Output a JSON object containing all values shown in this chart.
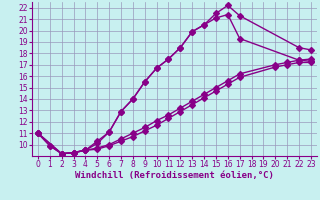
{
  "xlabel": "Windchill (Refroidissement éolien,°C)",
  "bg_color": "#c8f0f0",
  "grid_color": "#9999bb",
  "line_color": "#880088",
  "xlim": [
    -0.5,
    23.5
  ],
  "ylim": [
    9.0,
    22.5
  ],
  "xticks": [
    0,
    1,
    2,
    3,
    4,
    5,
    6,
    7,
    8,
    9,
    10,
    11,
    12,
    13,
    14,
    15,
    16,
    17,
    18,
    19,
    20,
    21,
    22,
    23
  ],
  "yticks": [
    10,
    11,
    12,
    13,
    14,
    15,
    16,
    17,
    18,
    19,
    20,
    21,
    22
  ],
  "line_peak_x": [
    0,
    1,
    2,
    3,
    4,
    5,
    6,
    7,
    8,
    9,
    10,
    11,
    12,
    13,
    14,
    15,
    16,
    17,
    22,
    23
  ],
  "line_peak_y": [
    11.0,
    9.9,
    9.2,
    9.3,
    9.5,
    10.3,
    11.1,
    12.9,
    14.0,
    15.5,
    16.7,
    17.5,
    18.5,
    19.9,
    20.5,
    21.5,
    22.2,
    21.3,
    18.5,
    18.3
  ],
  "line_mid_x": [
    0,
    1,
    2,
    3,
    4,
    5,
    6,
    7,
    8,
    9,
    10,
    11,
    12,
    13,
    14,
    15,
    16,
    17,
    22,
    23
  ],
  "line_mid_y": [
    11.0,
    9.9,
    9.2,
    9.3,
    9.5,
    10.1,
    11.1,
    12.9,
    14.0,
    15.5,
    16.7,
    17.5,
    18.5,
    19.9,
    20.5,
    21.1,
    21.4,
    19.3,
    17.4,
    17.3
  ],
  "line_low1_x": [
    0,
    2,
    3,
    4,
    5,
    6,
    7,
    8,
    9,
    10,
    11,
    12,
    13,
    14,
    15,
    16,
    17,
    20,
    21,
    22,
    23
  ],
  "line_low1_y": [
    11.0,
    9.2,
    9.3,
    9.5,
    9.7,
    10.0,
    10.5,
    11.0,
    11.5,
    12.1,
    12.6,
    13.2,
    13.8,
    14.4,
    15.0,
    15.6,
    16.2,
    17.0,
    17.2,
    17.4,
    17.5
  ],
  "line_low2_x": [
    0,
    2,
    3,
    4,
    5,
    6,
    7,
    8,
    9,
    10,
    11,
    12,
    13,
    14,
    15,
    16,
    17,
    20,
    21,
    22,
    23
  ],
  "line_low2_y": [
    11.0,
    9.2,
    9.3,
    9.5,
    9.6,
    9.9,
    10.3,
    10.7,
    11.2,
    11.7,
    12.3,
    12.9,
    13.5,
    14.1,
    14.7,
    15.3,
    15.9,
    16.8,
    17.0,
    17.2,
    17.2
  ],
  "marker_size": 3,
  "line_width": 1.0,
  "tick_fontsize": 5.5,
  "xlabel_fontsize": 6.5
}
